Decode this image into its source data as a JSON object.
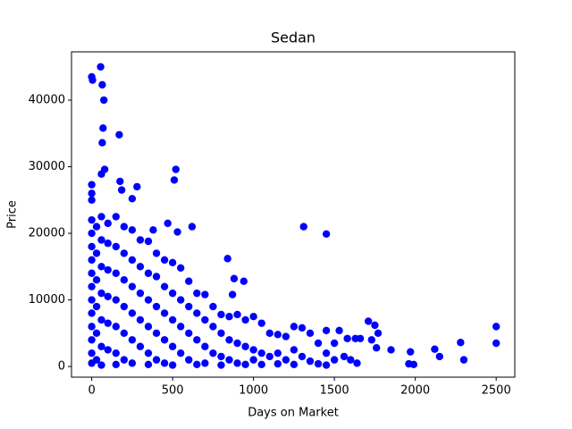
{
  "chart_data": {
    "type": "scatter",
    "title": "Sedan",
    "x_label": "Days on Market",
    "y_label": "Price",
    "color": "#0000ff",
    "x": [
      0,
      5,
      55,
      65,
      75,
      70,
      65,
      80,
      60,
      170,
      175,
      185,
      280,
      250,
      520,
      510,
      0,
      0,
      0,
      1310,
      1450,
      2500,
      2500,
      2280,
      2300,
      2120,
      2150,
      1970,
      1960,
      1990,
      1850,
      1760,
      1750,
      1710,
      1770,
      1730,
      1630,
      1660,
      1580,
      1530,
      1560,
      1600,
      1640,
      840,
      880,
      940,
      870,
      620,
      470,
      530,
      380,
      0,
      0,
      0,
      0,
      0,
      0,
      0,
      0,
      0,
      0,
      0,
      0,
      30,
      30,
      30,
      30,
      30,
      30,
      60,
      60,
      60,
      60,
      60,
      60,
      60,
      100,
      100,
      100,
      100,
      100,
      100,
      150,
      150,
      150,
      150,
      150,
      150,
      150,
      200,
      200,
      200,
      200,
      200,
      200,
      250,
      250,
      250,
      250,
      250,
      250,
      300,
      300,
      300,
      300,
      300,
      350,
      350,
      350,
      350,
      350,
      350,
      400,
      400,
      400,
      400,
      400,
      450,
      450,
      450,
      450,
      450,
      500,
      500,
      500,
      500,
      500,
      550,
      550,
      550,
      550,
      600,
      600,
      600,
      600,
      650,
      650,
      650,
      650,
      700,
      700,
      700,
      700,
      750,
      750,
      750,
      800,
      800,
      800,
      800,
      850,
      850,
      850,
      900,
      900,
      900,
      950,
      950,
      950,
      1000,
      1000,
      1000,
      1050,
      1050,
      1050,
      1100,
      1100,
      1150,
      1150,
      1150,
      1200,
      1200,
      1250,
      1250,
      1250,
      1300,
      1300,
      1350,
      1350,
      1400,
      1400,
      1450,
      1450,
      1450,
      1500,
      1500
    ],
    "values": [
      43500,
      43000,
      45000,
      42300,
      40000,
      35800,
      33600,
      29600,
      28900,
      34800,
      27800,
      26500,
      27000,
      25200,
      29600,
      28000,
      27300,
      26000,
      25000,
      21000,
      19900,
      6000,
      3500,
      3600,
      1000,
      2600,
      1500,
      2200,
      400,
      300,
      2500,
      2800,
      6200,
      6800,
      5000,
      4000,
      4200,
      4200,
      4200,
      5400,
      1500,
      1000,
      500,
      16200,
      13200,
      12800,
      10800,
      21000,
      21500,
      20200,
      20500,
      22000,
      20000,
      18000,
      16000,
      14000,
      12000,
      10000,
      8000,
      6000,
      4000,
      2000,
      500,
      21000,
      17000,
      13000,
      9000,
      5000,
      1000,
      22500,
      19000,
      15000,
      11000,
      7000,
      3000,
      200,
      21500,
      18500,
      14500,
      10500,
      6500,
      2500,
      22500,
      18000,
      14000,
      10000,
      6000,
      2000,
      300,
      21000,
      17000,
      13000,
      9000,
      5000,
      1000,
      20500,
      16000,
      12000,
      8000,
      4000,
      500,
      19000,
      15000,
      11000,
      7000,
      3000,
      18800,
      14000,
      10000,
      6000,
      2000,
      300,
      17000,
      13500,
      9000,
      5000,
      1000,
      16000,
      12000,
      8000,
      4000,
      500,
      15600,
      11000,
      7000,
      3000,
      200,
      14800,
      10000,
      6000,
      2000,
      12800,
      9000,
      5000,
      1000,
      11000,
      8000,
      4000,
      300,
      10800,
      7000,
      3000,
      500,
      9000,
      6000,
      2000,
      7800,
      5000,
      1500,
      200,
      7500,
      4000,
      1000,
      7800,
      3500,
      500,
      7000,
      3000,
      300,
      7500,
      2500,
      1000,
      6500,
      2000,
      300,
      5000,
      1500,
      4800,
      2000,
      400,
      4500,
      1000,
      6000,
      2500,
      300,
      5800,
      1500,
      5000,
      800,
      3500,
      400,
      5400,
      2000,
      200,
      3500,
      1000
    ],
    "xlim": [
      -125,
      2615
    ],
    "ylim": [
      -1600,
      47250
    ],
    "xticks": [
      0,
      500,
      1000,
      1500,
      2000,
      2500
    ],
    "yticks": [
      0,
      10000,
      20000,
      30000,
      40000
    ]
  }
}
